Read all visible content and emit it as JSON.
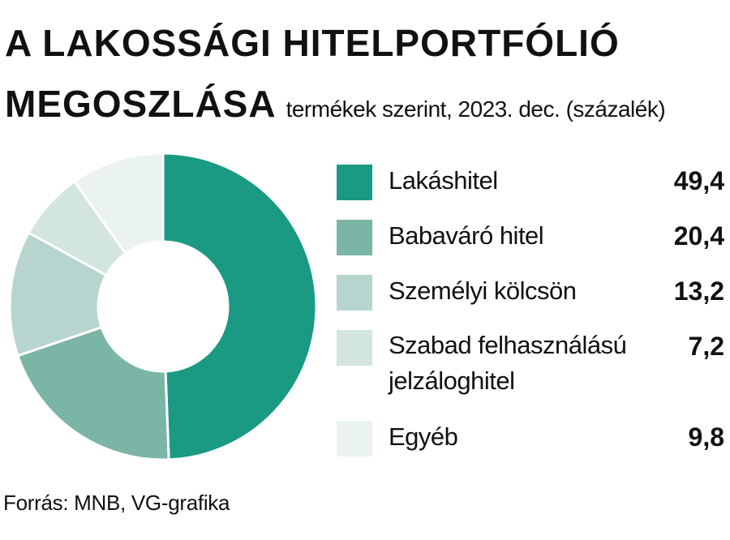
{
  "chart_data": {
    "type": "pie",
    "title_line1": "A LAKOSSÁGI HITELPORTFÓLIÓ",
    "title_line2": "MEGOSZLÁSA",
    "subtitle": "termékek szerint, 2023. dec. (százalék)",
    "categories": [
      "Lakáshitel",
      "Babaváró hitel",
      "Személyi kölcsön",
      "Szabad felhasználású jelzáloghitel",
      "Egyéb"
    ],
    "values": [
      49.4,
      20.4,
      13.2,
      7.2,
      9.8
    ],
    "value_labels": [
      "49,4",
      "20,4",
      "13,2",
      "7,2",
      "9,8"
    ],
    "colors": [
      "#1a9983",
      "#7ab5a6",
      "#b7d5ce",
      "#d3e5e0",
      "#ebf3f1"
    ],
    "legend_position": "right",
    "source": "Forrás: MNB, VG-grafika"
  }
}
